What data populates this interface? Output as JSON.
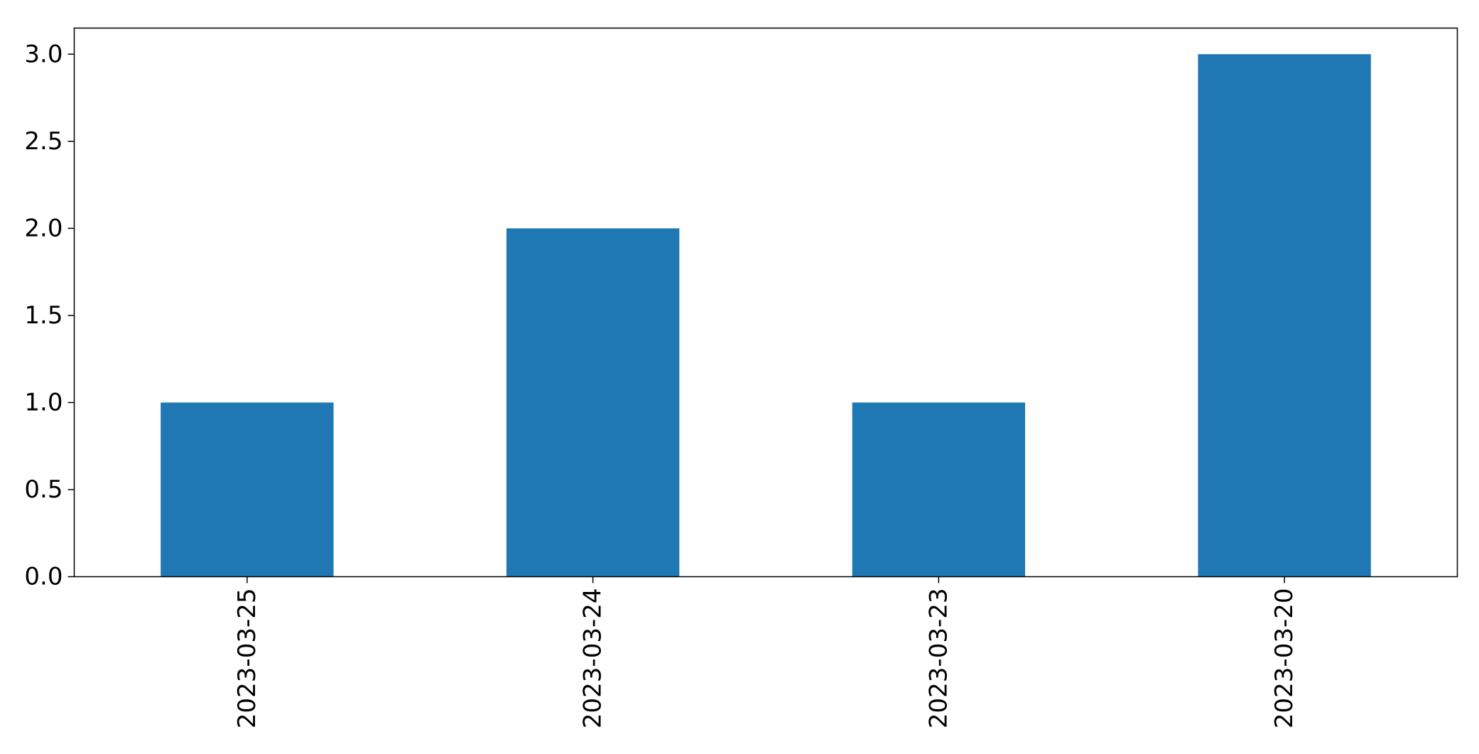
{
  "chart_data": {
    "type": "bar",
    "categories": [
      "2023-03-25",
      "2023-03-24",
      "2023-03-23",
      "2023-03-20"
    ],
    "values": [
      1,
      2,
      1,
      3
    ],
    "title": "",
    "xlabel": "",
    "ylabel": "",
    "ylim": [
      0,
      3.15
    ],
    "yticks": [
      "0.0",
      "0.5",
      "1.0",
      "1.5",
      "2.0",
      "2.5",
      "3.0"
    ],
    "x_tick_rotation": "vertical",
    "grid": false,
    "legend": "none",
    "bar_color": "#1f77b4"
  }
}
